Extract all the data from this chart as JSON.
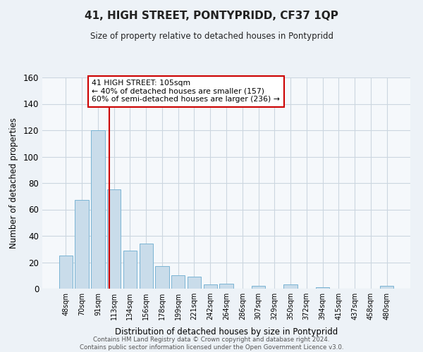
{
  "title": "41, HIGH STREET, PONTYPRIDD, CF37 1QP",
  "subtitle": "Size of property relative to detached houses in Pontypridd",
  "xlabel": "Distribution of detached houses by size in Pontypridd",
  "ylabel": "Number of detached properties",
  "categories": [
    "48sqm",
    "70sqm",
    "91sqm",
    "113sqm",
    "134sqm",
    "156sqm",
    "178sqm",
    "199sqm",
    "221sqm",
    "242sqm",
    "264sqm",
    "286sqm",
    "307sqm",
    "329sqm",
    "350sqm",
    "372sqm",
    "394sqm",
    "415sqm",
    "437sqm",
    "458sqm",
    "480sqm"
  ],
  "values": [
    25,
    67,
    120,
    75,
    29,
    34,
    17,
    10,
    9,
    3,
    4,
    0,
    2,
    0,
    3,
    0,
    1,
    0,
    0,
    0,
    2
  ],
  "bar_color": "#c9dcea",
  "bar_edge_color": "#7ab4d4",
  "ylim": [
    0,
    160
  ],
  "yticks": [
    0,
    20,
    40,
    60,
    80,
    100,
    120,
    140,
    160
  ],
  "vline_x": 2.72,
  "vline_color": "#cc0000",
  "annotation_title": "41 HIGH STREET: 105sqm",
  "annotation_line1": "← 40% of detached houses are smaller (157)",
  "annotation_line2": "60% of semi-detached houses are larger (236) →",
  "footer_line1": "Contains HM Land Registry data © Crown copyright and database right 2024.",
  "footer_line2": "Contains public sector information licensed under the Open Government Licence v3.0.",
  "background_color": "#edf2f7",
  "plot_bg_color": "#f5f8fb",
  "grid_color": "#ccd6e0"
}
